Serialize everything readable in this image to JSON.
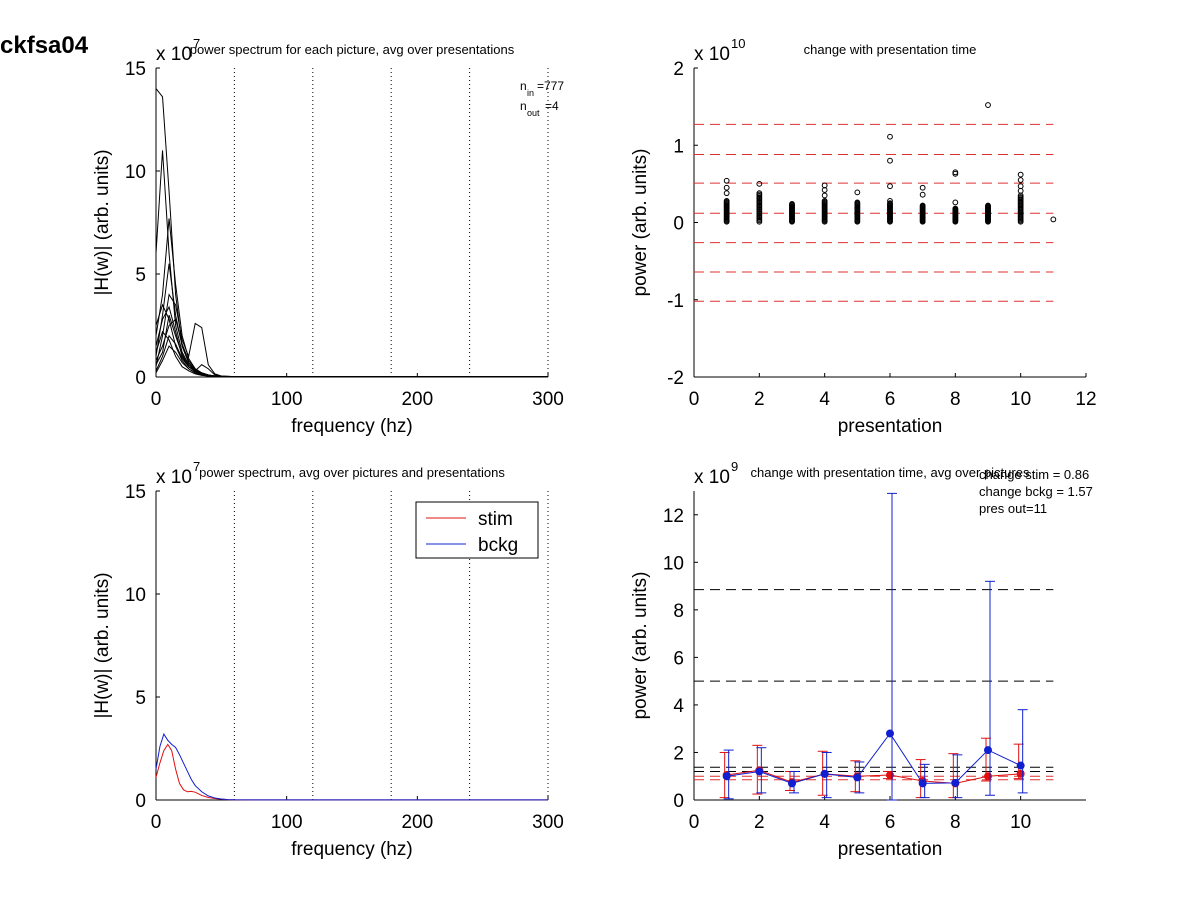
{
  "figure_title": "ckfsa04",
  "chart_data": [
    {
      "type": "line",
      "title": "power spectrum for each picture, avg over presentations",
      "xlabel": "frequency (hz)",
      "ylabel": "|H(w)| (arb. units)",
      "exponent_label": "x 10",
      "exponent": "7",
      "xlim": [
        0,
        300
      ],
      "ylim": [
        0,
        15
      ],
      "xticks": [
        "0",
        "100",
        "200",
        "300"
      ],
      "yticks": [
        "0",
        "5",
        "10",
        "15"
      ],
      "vlines": [
        60,
        120,
        180,
        240,
        300
      ],
      "annotations": [
        "n",
        "in",
        "=777",
        "n",
        "out",
        "=4"
      ],
      "x": [
        0,
        5,
        10,
        15,
        20,
        25,
        30,
        35,
        40,
        45,
        50,
        60,
        80,
        100,
        150,
        200,
        250,
        300
      ],
      "series": [
        {
          "values": [
            14.0,
            13.6,
            9.0,
            4.0,
            1.5,
            0.7,
            0.35,
            0.2,
            0.1,
            0.05,
            0.03,
            0.02,
            0.01,
            0.01,
            0.01,
            0.01,
            0.01,
            0.01
          ]
        },
        {
          "values": [
            6.0,
            11.0,
            6.0,
            2.5,
            1.2,
            0.6,
            0.3,
            0.15,
            0.08,
            0.05,
            0.03,
            0.02,
            0.01,
            0.01,
            0.01,
            0.01,
            0.01,
            0.01
          ]
        },
        {
          "values": [
            2.0,
            4.0,
            7.7,
            4.5,
            2.0,
            0.9,
            0.4,
            0.2,
            0.1,
            0.05,
            0.03,
            0.02,
            0.01,
            0.01,
            0.01,
            0.01,
            0.01,
            0.01
          ]
        },
        {
          "values": [
            1.0,
            3.0,
            5.5,
            3.0,
            1.5,
            0.7,
            0.3,
            0.15,
            0.07,
            0.04,
            0.02,
            0.01,
            0.01,
            0.01,
            0.01,
            0.01,
            0.01,
            0.01
          ]
        },
        {
          "values": [
            0.5,
            2.0,
            4.0,
            3.5,
            1.8,
            1.0,
            2.6,
            2.4,
            0.6,
            0.15,
            0.05,
            0.02,
            0.01,
            0.01,
            0.01,
            0.01,
            0.01,
            0.01
          ]
        },
        {
          "values": [
            1.5,
            2.8,
            3.4,
            2.2,
            1.0,
            0.5,
            0.25,
            0.12,
            0.06,
            0.03,
            0.02,
            0.01,
            0.01,
            0.01,
            0.01,
            0.01,
            0.01,
            0.01
          ]
        },
        {
          "values": [
            0.8,
            1.5,
            2.5,
            2.8,
            1.6,
            0.8,
            0.4,
            0.2,
            0.1,
            0.05,
            0.03,
            0.02,
            0.01,
            0.01,
            0.01,
            0.01,
            0.01,
            0.01
          ]
        },
        {
          "values": [
            0.3,
            1.0,
            2.0,
            1.6,
            0.9,
            0.5,
            0.3,
            0.6,
            0.4,
            0.1,
            0.04,
            0.02,
            0.01,
            0.01,
            0.01,
            0.01,
            0.01,
            0.01
          ]
        },
        {
          "values": [
            2.5,
            3.5,
            2.8,
            1.5,
            0.8,
            0.4,
            0.2,
            0.1,
            0.05,
            0.03,
            0.02,
            0.01,
            0.01,
            0.01,
            0.01,
            0.01,
            0.01,
            0.01
          ]
        },
        {
          "values": [
            0.2,
            0.8,
            1.5,
            1.2,
            0.7,
            0.4,
            0.2,
            0.1,
            0.05,
            0.03,
            0.02,
            0.01,
            0.01,
            0.01,
            0.01,
            0.01,
            0.01,
            0.01
          ]
        },
        {
          "values": [
            1.2,
            2.2,
            1.8,
            1.0,
            0.5,
            0.3,
            0.15,
            0.08,
            0.05,
            0.03,
            0.02,
            0.01,
            0.01,
            0.01,
            0.01,
            0.01,
            0.01,
            0.01
          ]
        },
        {
          "values": [
            0.6,
            1.2,
            3.0,
            2.0,
            1.1,
            0.5,
            0.3,
            0.15,
            0.08,
            0.04,
            0.02,
            0.01,
            0.01,
            0.01,
            0.01,
            0.01,
            0.01,
            0.01
          ]
        }
      ]
    },
    {
      "type": "scatter",
      "title": "change with presentation time",
      "xlabel": "presentation",
      "ylabel": "power (arb. units)",
      "exponent_label": "x 10",
      "exponent": "10",
      "xlim": [
        0,
        12
      ],
      "ylim": [
        -2,
        2
      ],
      "xticks": [
        "0",
        "2",
        "4",
        "6",
        "8",
        "10",
        "12"
      ],
      "yticks": [
        "-2",
        "-1",
        "0",
        "1",
        "2"
      ],
      "hlines": [
        1.27,
        0.88,
        0.51,
        0.12,
        -0.26,
        -0.64,
        -1.02
      ],
      "hline_x_range": [
        0,
        11
      ],
      "hline_color": "#e03030",
      "columns": [
        {
          "x": 1,
          "range": [
            0.01,
            0.28
          ]
        },
        {
          "x": 2,
          "range": [
            0.01,
            0.38
          ]
        },
        {
          "x": 3,
          "range": [
            0.01,
            0.24
          ]
        },
        {
          "x": 4,
          "range": [
            0.01,
            0.28
          ]
        },
        {
          "x": 5,
          "range": [
            0.01,
            0.26
          ]
        },
        {
          "x": 6,
          "range": [
            0.01,
            0.25
          ]
        },
        {
          "x": 7,
          "range": [
            0.01,
            0.22
          ]
        },
        {
          "x": 8,
          "range": [
            0.01,
            0.18
          ]
        },
        {
          "x": 9,
          "range": [
            0.01,
            0.22
          ]
        },
        {
          "x": 10,
          "range": [
            0.01,
            0.33
          ]
        }
      ],
      "points": [
        [
          1,
          0.54
        ],
        [
          1,
          0.45
        ],
        [
          1,
          0.38
        ],
        [
          2,
          0.5
        ],
        [
          4,
          0.48
        ],
        [
          4,
          0.42
        ],
        [
          4,
          0.35
        ],
        [
          5,
          0.39
        ],
        [
          6,
          1.11
        ],
        [
          6,
          0.8
        ],
        [
          6,
          0.47
        ],
        [
          6,
          0.28
        ],
        [
          7,
          0.45
        ],
        [
          7,
          0.36
        ],
        [
          8,
          0.65
        ],
        [
          8,
          0.63
        ],
        [
          8,
          0.26
        ],
        [
          9,
          1.52
        ],
        [
          10,
          0.62
        ],
        [
          10,
          0.55
        ],
        [
          10,
          0.47
        ],
        [
          10,
          0.41
        ],
        [
          10,
          0.35
        ],
        [
          11,
          0.04
        ]
      ]
    },
    {
      "type": "line",
      "title": "power spectrum, avg over pictures and presentations",
      "xlabel": "frequency (hz)",
      "ylabel": "|H(w)| (arb. units)",
      "exponent_label": "x 10",
      "exponent": "7",
      "xlim": [
        0,
        300
      ],
      "ylim": [
        0,
        15
      ],
      "xticks": [
        "0",
        "100",
        "200",
        "300"
      ],
      "yticks": [
        "0",
        "5",
        "10",
        "15"
      ],
      "vlines": [
        60,
        120,
        180,
        240,
        300
      ],
      "legend": "top-right",
      "x": [
        0,
        3,
        6,
        9,
        12,
        15,
        18,
        21,
        24,
        27,
        30,
        35,
        40,
        45,
        50,
        55,
        60,
        80,
        100,
        150,
        200,
        250,
        300
      ],
      "series": [
        {
          "name": "stim",
          "color": "#e01010",
          "values": [
            1.1,
            1.8,
            2.4,
            2.7,
            2.4,
            1.5,
            0.8,
            0.5,
            0.4,
            0.42,
            0.38,
            0.22,
            0.12,
            0.07,
            0.04,
            0.02,
            0.01,
            0.005,
            0.005,
            0.005,
            0.005,
            0.005,
            0.005
          ]
        },
        {
          "name": "bckg",
          "color": "#1020d0",
          "values": [
            1.5,
            2.6,
            3.2,
            2.9,
            2.7,
            2.55,
            2.2,
            1.8,
            1.4,
            1.0,
            0.7,
            0.4,
            0.2,
            0.1,
            0.05,
            0.02,
            0.01,
            0.005,
            0.005,
            0.005,
            0.005,
            0.005,
            0.005
          ]
        }
      ]
    },
    {
      "type": "line",
      "title": "change with presentation time, avg over pictures",
      "xlabel": "presentation",
      "ylabel": "power (arb. units)",
      "exponent_label": "x 10",
      "exponent": "9",
      "xlim": [
        0,
        12
      ],
      "ylim": [
        0,
        13
      ],
      "xticks": [
        "0",
        "2",
        "4",
        "6",
        "8",
        "10"
      ],
      "yticks": [
        "0",
        "2",
        "4",
        "6",
        "8",
        "10",
        "12"
      ],
      "annotations": [
        "change stim = 0.86",
        "change bckg = 1.57",
        "pres out=11"
      ],
      "hlines": [
        {
          "y": 8.85,
          "color": "#000000"
        },
        {
          "y": 5.0,
          "color": "#000000"
        },
        {
          "y": 1.38,
          "color": "#000000"
        },
        {
          "y": 1.2,
          "color": "#000000"
        },
        {
          "y": 1.0,
          "color": "#e03030"
        },
        {
          "y": 0.85,
          "color": "#e03030"
        }
      ],
      "hline_x_range": [
        0,
        11
      ],
      "x": [
        1,
        2,
        3,
        4,
        5,
        6,
        7,
        8,
        9,
        10
      ],
      "series": [
        {
          "name": "stim",
          "color": "#e01010",
          "values": [
            1.05,
            1.25,
            0.75,
            1.1,
            1.0,
            1.05,
            0.8,
            0.7,
            1.0,
            1.1
          ],
          "err_hi": [
            2.0,
            2.3,
            1.2,
            2.05,
            1.65,
            1.2,
            1.7,
            1.95,
            2.6,
            2.35
          ],
          "err_lo": [
            0.1,
            0.25,
            0.4,
            0.2,
            0.35,
            0.9,
            0.1,
            0.1,
            0.8,
            0.9
          ]
        },
        {
          "name": "bckg",
          "color": "#1020d0",
          "values": [
            1.0,
            1.2,
            0.7,
            1.1,
            0.95,
            2.8,
            0.7,
            0.72,
            2.1,
            1.45
          ],
          "err_hi": [
            2.1,
            2.2,
            1.2,
            2.0,
            1.6,
            12.9,
            1.5,
            1.9,
            9.2,
            3.8
          ],
          "err_lo": [
            0.05,
            0.3,
            0.3,
            0.1,
            0.3,
            0.0,
            0.1,
            0.1,
            0.2,
            0.3
          ]
        }
      ]
    }
  ]
}
